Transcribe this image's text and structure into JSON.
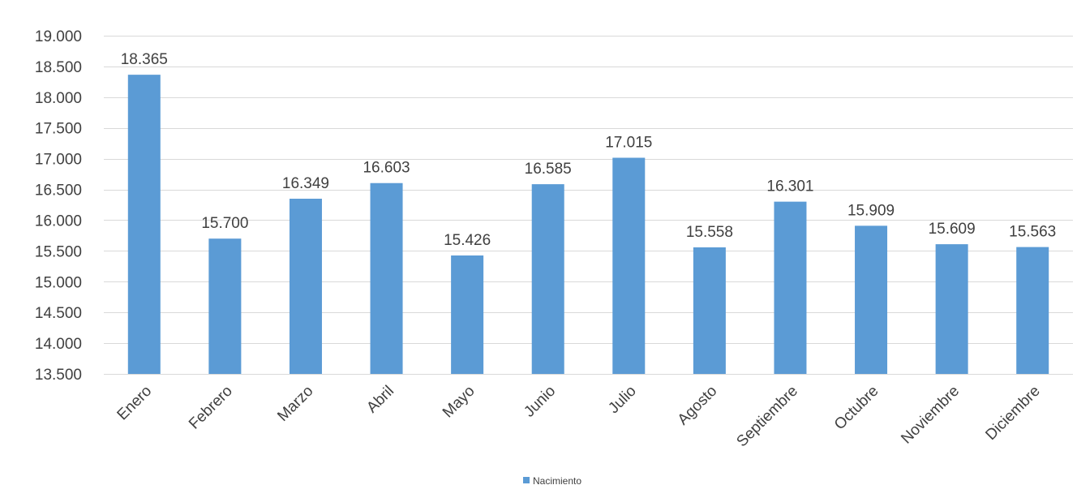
{
  "chart_data": {
    "type": "bar",
    "categories": [
      "Enero",
      "Febrero",
      "Marzo",
      "Abril",
      "Mayo",
      "Junio",
      "Julio",
      "Agosto",
      "Septiembre",
      "Octubre",
      "Noviembre",
      "Diciembre"
    ],
    "series": [
      {
        "name": "Nacimiento",
        "values": [
          18365,
          15700,
          16349,
          16603,
          15426,
          16585,
          17015,
          15558,
          16301,
          15909,
          15609,
          15563
        ],
        "value_labels": [
          "18.365",
          "15.700",
          "16.349",
          "16.603",
          "15.426",
          "16.585",
          "17.015",
          "15.558",
          "16.301",
          "15.909",
          "15.609",
          "15.563"
        ],
        "color": "#5B9BD5"
      }
    ],
    "ylim": [
      13500,
      19000
    ],
    "yticks": [
      13500,
      14000,
      14500,
      15000,
      15500,
      16000,
      16500,
      17000,
      17500,
      18000,
      18500,
      19000
    ],
    "ytick_labels": [
      "13.500",
      "14.000",
      "14.500",
      "15.000",
      "15.500",
      "16.000",
      "16.500",
      "17.000",
      "17.500",
      "18.000",
      "18.500",
      "19.000"
    ],
    "grid": true,
    "legend_position": "bottom",
    "gridline_color": "#D9D9D9",
    "text_color": "#404040"
  }
}
